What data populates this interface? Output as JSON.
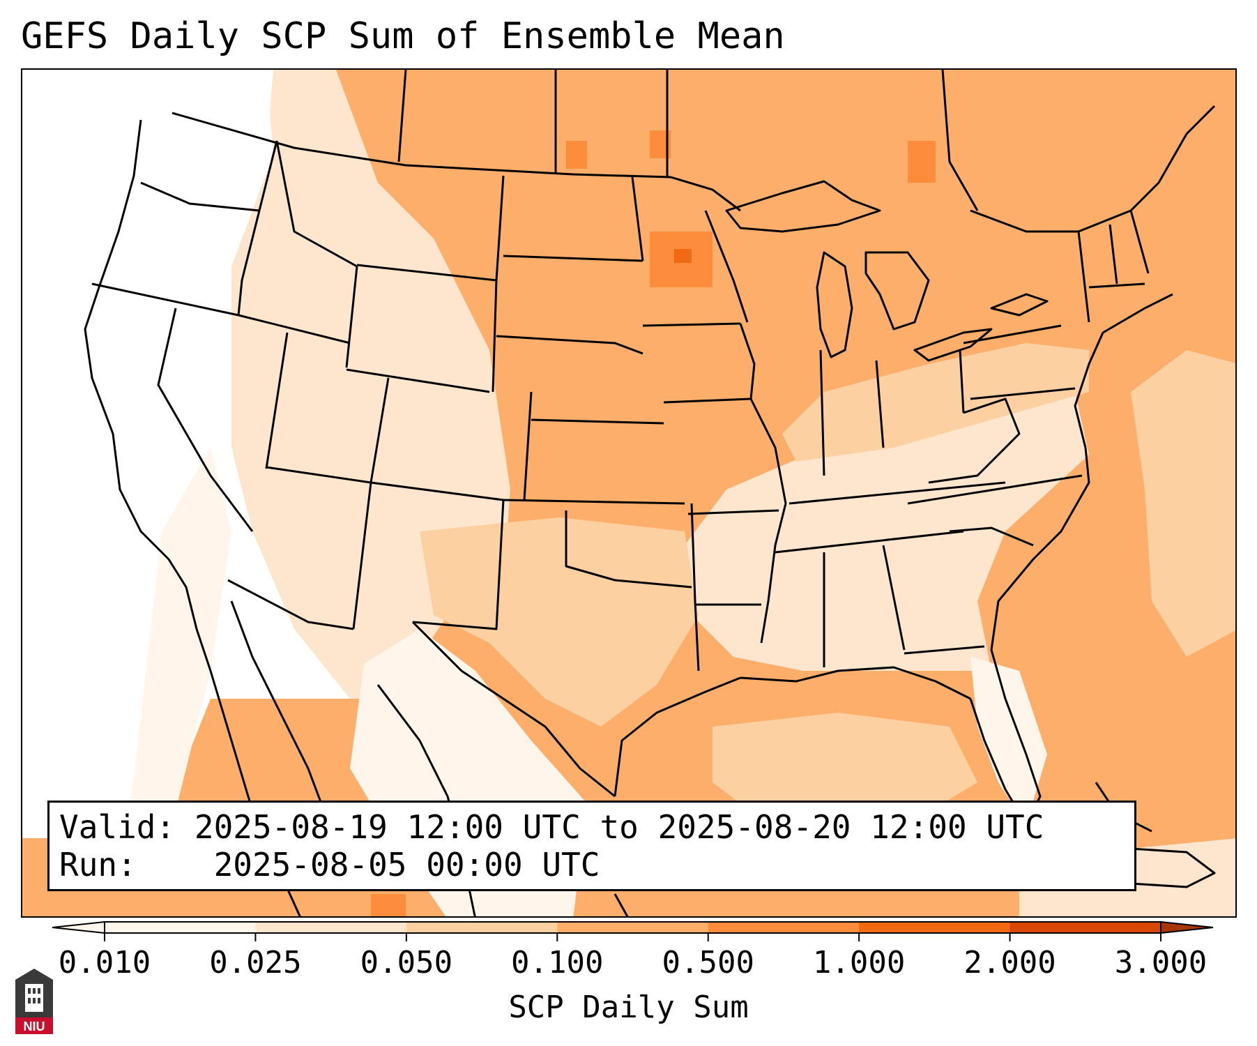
{
  "title": "GEFS Daily SCP Sum of Ensemble Mean",
  "info": {
    "valid_label": "Valid:",
    "valid_value": "2025-08-19 12:00 UTC to 2025-08-20 12:00 UTC",
    "run_label": "Run:",
    "run_value": "2025-08-05 00:00 UTC"
  },
  "colorbar": {
    "label": "SCP Daily Sum",
    "ticks": [
      "0.010",
      "0.025",
      "0.050",
      "0.100",
      "0.500",
      "1.000",
      "2.000",
      "3.000"
    ],
    "colors": [
      "#fff5eb",
      "#fee6ce",
      "#fdd0a2",
      "#fdae6b",
      "#fd8d3c",
      "#f16913",
      "#d94801",
      "#a63603"
    ],
    "extend": "both"
  },
  "logo": {
    "text": "NIU",
    "colors": {
      "dark": "#3a3a3a",
      "red": "#c8102e"
    }
  }
}
